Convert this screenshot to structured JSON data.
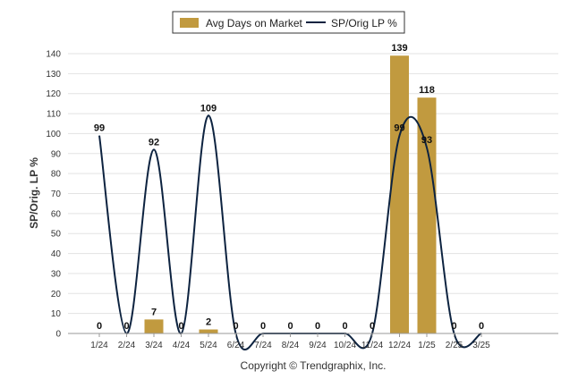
{
  "chart_data": {
    "type": "bar",
    "categories": [
      "1/24",
      "2/24",
      "3/24",
      "4/24",
      "5/24",
      "6/24",
      "7/24",
      "8/24",
      "9/24",
      "10/24",
      "11/24",
      "12/24",
      "1/25",
      "2/25",
      "3/25"
    ],
    "series": [
      {
        "name": "Avg Days on Market",
        "type": "bar",
        "color": "#c19a3f",
        "values": [
          0,
          0,
          7,
          0,
          2,
          0,
          0,
          0,
          0,
          0,
          0,
          139,
          118,
          0,
          0
        ]
      },
      {
        "name": "SP/Orig LP %",
        "type": "line",
        "color": "#0d2340",
        "values": [
          99,
          0,
          92,
          0,
          109,
          0,
          0,
          0,
          0,
          0,
          0,
          99,
          93,
          0,
          0
        ]
      }
    ],
    "ylabel": "SP/Orig. LP %",
    "ylim": [
      0,
      140
    ],
    "yticks": [
      0,
      10,
      20,
      30,
      40,
      50,
      60,
      70,
      80,
      90,
      100,
      110,
      120,
      130,
      140
    ],
    "grid": true,
    "legend": "top-center"
  },
  "footer": {
    "copyright": "Copyright © Trendgraphix, Inc."
  }
}
